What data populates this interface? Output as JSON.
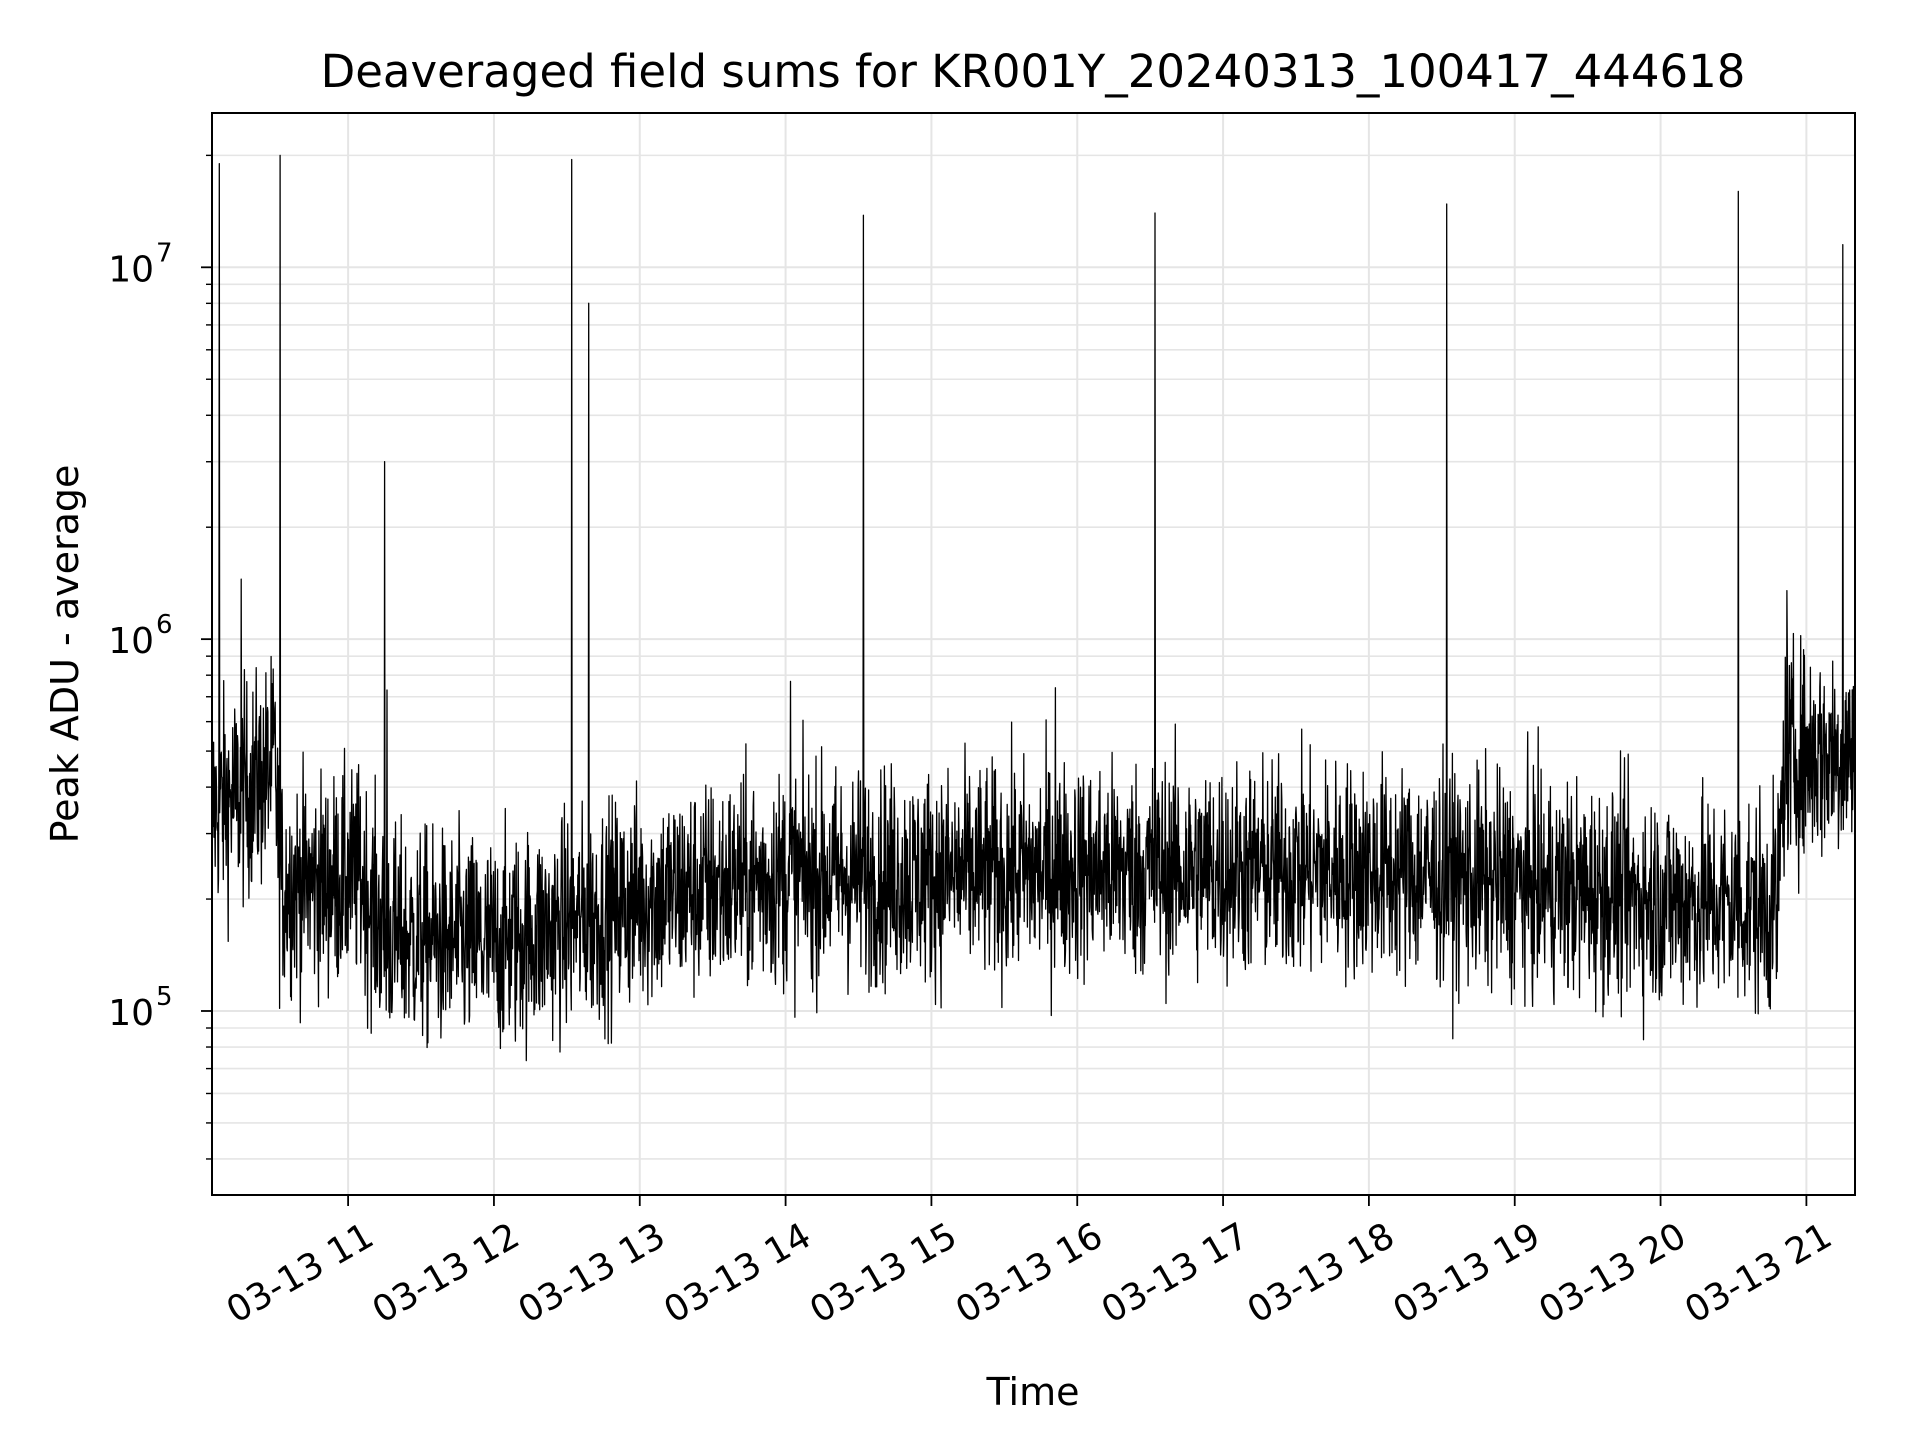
{
  "chart_data": {
    "type": "line",
    "title": "Deaveraged field sums for KR001Y_20240313_100417_444618",
    "xlabel": "Time",
    "ylabel": "Peak ADU - average",
    "yscale": "log",
    "ylim": [
      32000,
      26000000
    ],
    "xlim": [
      "2024-03-13 10:04",
      "2024-03-13 21:20"
    ],
    "grid": true,
    "line_color": "#000000",
    "x_ticks": [
      {
        "x": "2024-03-13 11:00",
        "label": "03-13 11"
      },
      {
        "x": "2024-03-13 12:00",
        "label": "03-13 12"
      },
      {
        "x": "2024-03-13 13:00",
        "label": "03-13 13"
      },
      {
        "x": "2024-03-13 14:00",
        "label": "03-13 14"
      },
      {
        "x": "2024-03-13 15:00",
        "label": "03-13 15"
      },
      {
        "x": "2024-03-13 16:00",
        "label": "03-13 16"
      },
      {
        "x": "2024-03-13 17:00",
        "label": "03-13 17"
      },
      {
        "x": "2024-03-13 18:00",
        "label": "03-13 18"
      },
      {
        "x": "2024-03-13 19:00",
        "label": "03-13 19"
      },
      {
        "x": "2024-03-13 20:00",
        "label": "03-13 20"
      },
      {
        "x": "2024-03-13 21:00",
        "label": "03-13 21"
      }
    ],
    "y_ticks": [
      {
        "value": 100000,
        "base": "10",
        "exp": "5"
      },
      {
        "value": 1000000,
        "base": "10",
        "exp": "6"
      },
      {
        "value": 10000000,
        "base": "10",
        "exp": "7"
      }
    ],
    "series": [
      {
        "baseline": [
          {
            "x": "2024-03-13 10:04",
            "y": 350000
          },
          {
            "x": "2024-03-13 10:15",
            "y": 380000
          },
          {
            "x": "2024-03-13 10:25",
            "y": 420000
          },
          {
            "x": "2024-03-13 10:30",
            "y": 470000
          },
          {
            "x": "2024-03-13 10:32",
            "y": 220000
          },
          {
            "x": "2024-03-13 10:50",
            "y": 220000
          },
          {
            "x": "2024-03-13 11:05",
            "y": 230000
          },
          {
            "x": "2024-03-13 11:15",
            "y": 160000
          },
          {
            "x": "2024-03-13 12:00",
            "y": 150000
          },
          {
            "x": "2024-03-13 12:30",
            "y": 170000
          },
          {
            "x": "2024-03-13 13:00",
            "y": 200000
          },
          {
            "x": "2024-03-13 14:00",
            "y": 230000
          },
          {
            "x": "2024-03-13 15:00",
            "y": 230000
          },
          {
            "x": "2024-03-13 16:00",
            "y": 240000
          },
          {
            "x": "2024-03-13 17:00",
            "y": 240000
          },
          {
            "x": "2024-03-13 18:00",
            "y": 240000
          },
          {
            "x": "2024-03-13 19:00",
            "y": 220000
          },
          {
            "x": "2024-03-13 20:00",
            "y": 200000
          },
          {
            "x": "2024-03-13 20:48",
            "y": 190000
          },
          {
            "x": "2024-03-13 20:51",
            "y": 480000
          },
          {
            "x": "2024-03-13 21:20",
            "y": 500000
          }
        ],
        "noise_spread_decades": 0.26,
        "samples_per_hour": 360,
        "spikes": [
          {
            "x": "2024-03-13 10:07",
            "y": 19000000
          },
          {
            "x": "2024-03-13 10:32",
            "y": 20000000
          },
          {
            "x": "2024-03-13 11:15",
            "y": 3000000
          },
          {
            "x": "2024-03-13 12:32",
            "y": 19500000
          },
          {
            "x": "2024-03-13 12:39",
            "y": 8000000
          },
          {
            "x": "2024-03-13 14:32",
            "y": 13800000
          },
          {
            "x": "2024-03-13 16:32",
            "y": 14000000
          },
          {
            "x": "2024-03-13 18:32",
            "y": 14800000
          },
          {
            "x": "2024-03-13 20:32",
            "y": 16000000
          },
          {
            "x": "2024-03-13 21:15",
            "y": 11500000
          },
          {
            "x": "2024-03-13 10:16",
            "y": 1450000
          },
          {
            "x": "2024-03-13 20:52",
            "y": 1350000
          },
          {
            "x": "2024-03-13 11:16",
            "y": 730000
          },
          {
            "x": "2024-03-13 14:02",
            "y": 770000
          },
          {
            "x": "2024-03-13 15:51",
            "y": 740000
          }
        ]
      }
    ]
  }
}
